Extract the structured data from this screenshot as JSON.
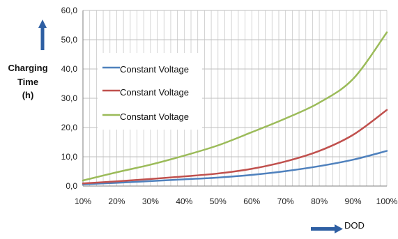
{
  "chart_data": {
    "type": "line",
    "title": "",
    "ylabel": [
      "Charging",
      "Time",
      "(h)"
    ],
    "xlabel": "DOD",
    "x": [
      "10%",
      "20%",
      "30%",
      "40%",
      "50%",
      "60%",
      "70%",
      "80%",
      "90%",
      "100%"
    ],
    "y_ticks": [
      "0,0",
      "10,0",
      "20,0",
      "30,0",
      "40,0",
      "50,0",
      "60,0"
    ],
    "ylim": [
      0,
      60
    ],
    "grid": true,
    "legend_position": "left",
    "series": [
      {
        "name": "Constant Voltage",
        "color": "#4f81bd",
        "values": [
          0.6,
          1.1,
          1.7,
          2.3,
          2.9,
          3.8,
          5.1,
          6.8,
          9.0,
          12.0
        ]
      },
      {
        "name": "Constant Voltage",
        "color": "#c0504d",
        "values": [
          0.9,
          1.6,
          2.4,
          3.3,
          4.3,
          5.9,
          8.4,
          12.0,
          17.5,
          26.0
        ]
      },
      {
        "name": "Constant Voltage",
        "color": "#9bbb59",
        "values": [
          1.9,
          4.7,
          7.3,
          10.4,
          13.9,
          18.4,
          23.1,
          28.5,
          36.6,
          52.5
        ]
      }
    ]
  }
}
